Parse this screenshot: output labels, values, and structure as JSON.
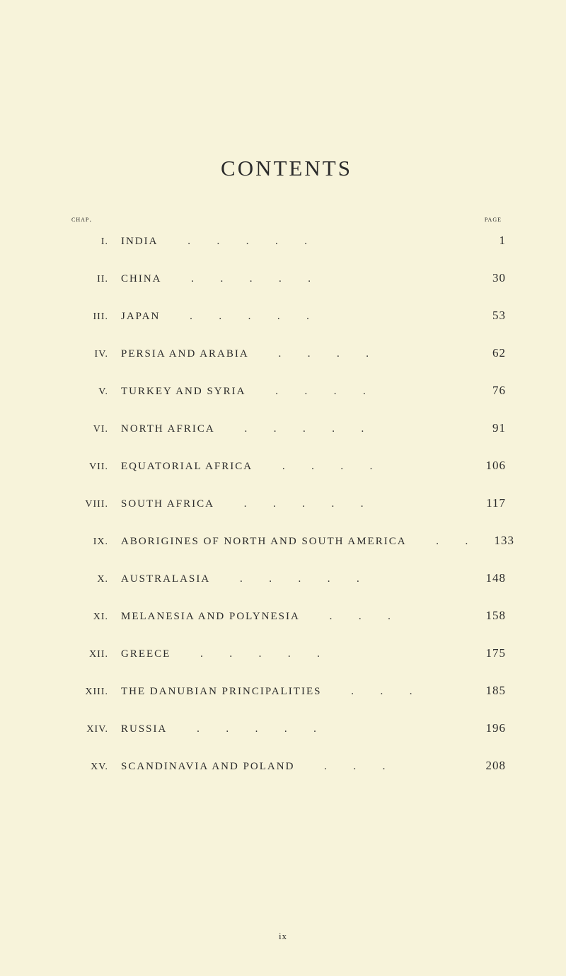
{
  "title": "CONTENTS",
  "header_left": "chap.",
  "header_right": "page",
  "entries": [
    {
      "roman": "I.",
      "title": "INDIA",
      "page": "1"
    },
    {
      "roman": "II.",
      "title": "CHINA",
      "page": "30"
    },
    {
      "roman": "III.",
      "title": "JAPAN",
      "page": "53"
    },
    {
      "roman": "IV.",
      "title": "PERSIA AND ARABIA",
      "page": "62"
    },
    {
      "roman": "V.",
      "title": "TURKEY AND SYRIA",
      "page": "76"
    },
    {
      "roman": "VI.",
      "title": "NORTH AFRICA",
      "page": "91"
    },
    {
      "roman": "VII.",
      "title": "EQUATORIAL AFRICA",
      "page": "106"
    },
    {
      "roman": "VIII.",
      "title": "SOUTH AFRICA",
      "page": "117"
    },
    {
      "roman": "IX.",
      "title": "ABORIGINES OF NORTH AND SOUTH AMERICA",
      "page": "133"
    },
    {
      "roman": "X.",
      "title": "AUSTRALASIA",
      "page": "148"
    },
    {
      "roman": "XI.",
      "title": "MELANESIA AND POLYNESIA",
      "page": "158"
    },
    {
      "roman": "XII.",
      "title": "GREECE",
      "page": "175"
    },
    {
      "roman": "XIII.",
      "title": "THE DANUBIAN PRINCIPALITIES",
      "page": "185"
    },
    {
      "roman": "XIV.",
      "title": "RUSSIA",
      "page": "196"
    },
    {
      "roman": "XV.",
      "title": "SCANDINAVIA AND POLAND",
      "page": "208"
    }
  ],
  "footer_roman": "ix",
  "style": {
    "background_color": "#f7f3da",
    "text_color": "#2b2b2b",
    "title_fontsize": 31,
    "roman_fontsize": 14,
    "chapter_fontsize": 15,
    "page_fontsize": 17,
    "header_fontsize": 11
  }
}
